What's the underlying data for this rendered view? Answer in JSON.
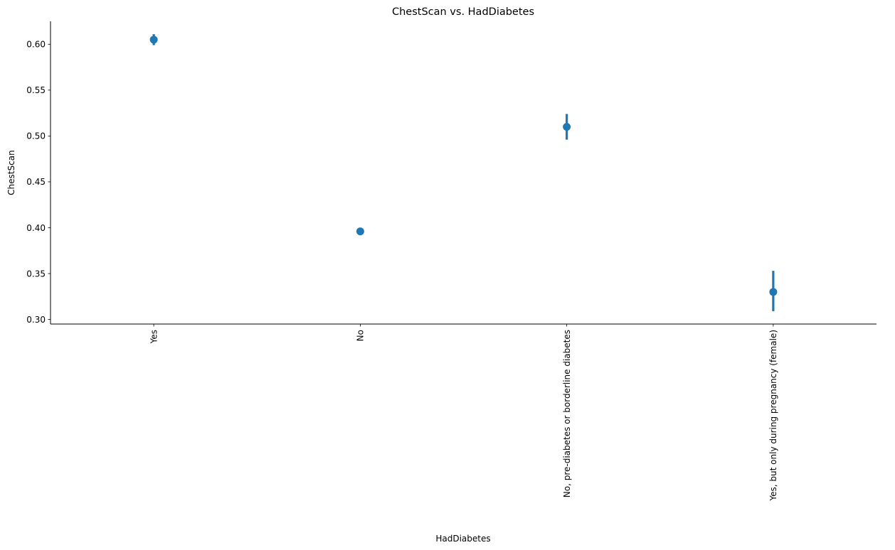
{
  "chart_data": {
    "type": "scatter",
    "subtype": "pointplot-with-error-bars",
    "title": "ChestScan vs. HadDiabetes",
    "xlabel": "HadDiabetes",
    "ylabel": "ChestScan",
    "categories": [
      "Yes",
      "No",
      "No, pre-diabetes or borderline diabetes",
      "Yes, but only during pregnancy (female)"
    ],
    "series": [
      {
        "values": [
          0.605,
          0.396,
          0.51,
          0.33
        ],
        "ci_low": [
          0.599,
          0.394,
          0.496,
          0.309
        ],
        "ci_high": [
          0.611,
          0.398,
          0.524,
          0.353
        ]
      }
    ],
    "ylim": [
      0.295,
      0.625
    ],
    "yticks": [
      0.3,
      0.35,
      0.4,
      0.45,
      0.5,
      0.55,
      0.6
    ],
    "ytick_labels": [
      "0.30",
      "0.35",
      "0.40",
      "0.45",
      "0.50",
      "0.55",
      "0.60"
    ],
    "color": "#1f77b4",
    "grid": false,
    "legend": "none"
  }
}
